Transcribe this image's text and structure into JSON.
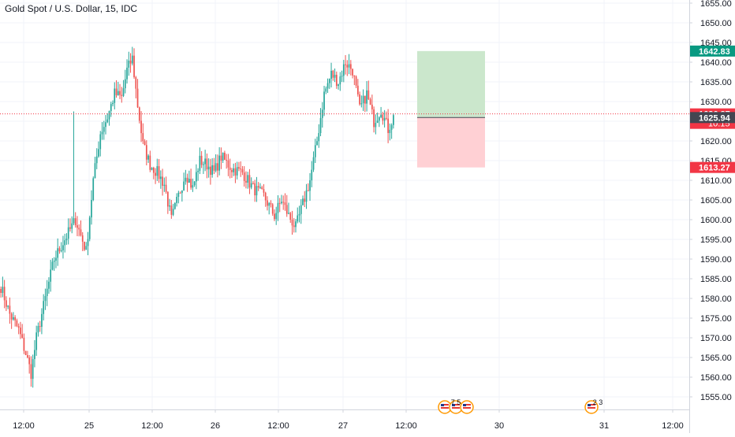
{
  "chart_data": {
    "type": "candlestick",
    "title": "Gold Spot / U.S. Dollar, 15, IDC",
    "symbol": "Gold Spot / U.S. Dollar",
    "interval": "15",
    "exchange": "IDC",
    "xlabel": "",
    "ylabel": "",
    "ylim": [
      1551,
      1657
    ],
    "grid": true,
    "y_ticks": [
      1555,
      1560,
      1565,
      1570,
      1575,
      1580,
      1585,
      1590,
      1595,
      1600,
      1605,
      1610,
      1615,
      1620,
      1625,
      1630,
      1635,
      1640,
      1645,
      1650,
      1655
    ],
    "y_tick_labels": [
      "1555.00",
      "1560.00",
      "1565.00",
      "1570.00",
      "1575.00",
      "1580.00",
      "1585.00",
      "1590.00",
      "1595.00",
      "1600.00",
      "1605.00",
      "1610.00",
      "1615.00",
      "1620.00",
      "1625.00",
      "1630.00",
      "1635.00",
      "1640.00",
      "1645.00",
      "1650.00",
      "1655.00"
    ],
    "x_ticks": [
      {
        "label": "12:00",
        "slot": 0
      },
      {
        "label": "25",
        "slot": 1
      },
      {
        "label": "12:00",
        "slot": 2
      },
      {
        "label": "26",
        "slot": 3
      },
      {
        "label": "12:00",
        "slot": 4
      },
      {
        "label": "27",
        "slot": 5
      },
      {
        "label": "12:00",
        "slot": 6
      },
      {
        "label": "30",
        "slot": 7
      },
      {
        "label": "31",
        "slot": 8
      },
      {
        "label": "12:00",
        "slot": 9
      }
    ],
    "price_waypoints": [
      [
        0,
        1583
      ],
      [
        5,
        1576
      ],
      [
        10,
        1572
      ],
      [
        14,
        1566
      ],
      [
        17,
        1561
      ],
      [
        20,
        1570
      ],
      [
        24,
        1578
      ],
      [
        30,
        1590
      ],
      [
        36,
        1595
      ],
      [
        42,
        1600
      ],
      [
        48,
        1592
      ],
      [
        52,
        1610
      ],
      [
        56,
        1622
      ],
      [
        60,
        1626
      ],
      [
        64,
        1632
      ],
      [
        68,
        1631
      ],
      [
        71,
        1638
      ],
      [
        74,
        1641
      ],
      [
        77,
        1629
      ],
      [
        80,
        1619
      ],
      [
        84,
        1614
      ],
      [
        88,
        1612
      ],
      [
        92,
        1609
      ],
      [
        96,
        1600
      ],
      [
        100,
        1606
      ],
      [
        104,
        1612
      ],
      [
        108,
        1608
      ],
      [
        112,
        1615
      ],
      [
        116,
        1614
      ],
      [
        120,
        1612
      ],
      [
        124,
        1616
      ],
      [
        130,
        1613
      ],
      [
        136,
        1612
      ],
      [
        142,
        1608
      ],
      [
        148,
        1606
      ],
      [
        154,
        1601
      ],
      [
        158,
        1605
      ],
      [
        162,
        1601
      ],
      [
        166,
        1598
      ],
      [
        170,
        1604
      ],
      [
        174,
        1610
      ],
      [
        178,
        1620
      ],
      [
        182,
        1632
      ],
      [
        186,
        1637
      ],
      [
        190,
        1635
      ],
      [
        194,
        1640
      ],
      [
        198,
        1638
      ],
      [
        202,
        1628
      ],
      [
        206,
        1632
      ],
      [
        210,
        1625
      ],
      [
        214,
        1628
      ],
      [
        218,
        1623
      ],
      [
        221,
        1626
      ]
    ],
    "spike": {
      "bar": 41,
      "high": 1627.5
    },
    "levels": {
      "target": {
        "value": 1642.83,
        "label": "1642.83",
        "color": "#089981"
      },
      "last_price": {
        "value": 1626.87,
        "label": "1626.87",
        "countdown": "10:15",
        "color": "#f23645"
      },
      "entry": {
        "value": 1625.94,
        "label": "1625.94",
        "color": "#434651"
      },
      "stop": {
        "value": 1613.27,
        "label": "1613.27",
        "color": "#f23645"
      }
    },
    "position": {
      "type": "long",
      "target": 1642.83,
      "entry": 1625.94,
      "stop": 1613.27
    },
    "colors": {
      "up": "#26a69a",
      "down": "#ef5350",
      "grid": "#f0f3fa",
      "axis_text": "#131722",
      "profit_fill": "#c8e6c9",
      "loss_fill": "#ffcdd2"
    },
    "events": [
      {
        "flags": "us",
        "count": "7 5",
        "slot": 0
      },
      {
        "flags": "us",
        "count": "2 3",
        "slot": 1
      }
    ]
  }
}
